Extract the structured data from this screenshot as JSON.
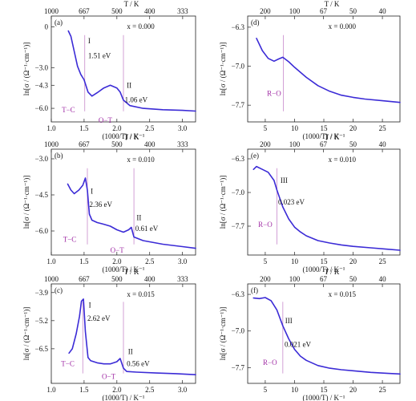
{
  "colors": {
    "curve": "#3b2bd6",
    "phase": "#b03ab5",
    "vline": "#c889cc"
  },
  "chart_data": [
    {
      "type": "line",
      "panel": "(a)",
      "annotation": "x = 0.000",
      "xlabel": "(1000/T) / K⁻¹",
      "ylabel": "ln[σ / (Ω⁻¹·cm⁻¹)]",
      "toplabel": "T / K",
      "xlim": [
        1.0,
        3.2
      ],
      "ylim": [
        -7.0,
        0.8
      ],
      "xticks": [
        1.0,
        1.5,
        2.0,
        2.5,
        3.0
      ],
      "xtick_labels": [
        "1.0",
        "1.5",
        "2.0",
        "2.5",
        "3.0"
      ],
      "yticks": [
        0,
        -3.0,
        -4.3,
        -6.0
      ],
      "ytick_labels": [
        "0",
        "−3.0",
        "−4.3",
        "−6.0"
      ],
      "top_ticks": [
        1000,
        667,
        500,
        400,
        333
      ],
      "top_tick_labels": [
        "1000",
        "667",
        "500",
        "400",
        "333"
      ],
      "series": [
        {
          "x": [
            1.26,
            1.3,
            1.35,
            1.4,
            1.45,
            1.5,
            1.56,
            1.62,
            1.7,
            1.8,
            1.9,
            2.0,
            2.05,
            2.1,
            2.2,
            2.4,
            2.7,
            3.0,
            3.2
          ],
          "y": [
            -0.3,
            -0.7,
            -1.8,
            -2.9,
            -3.5,
            -3.9,
            -4.8,
            -5.1,
            -4.85,
            -4.5,
            -4.3,
            -4.5,
            -4.8,
            -5.4,
            -5.8,
            -6.0,
            -6.1,
            -6.15,
            -6.2
          ]
        }
      ],
      "vlines": [
        1.51,
        2.1
      ],
      "labels": [
        {
          "text": "I",
          "x": 1.56,
          "y": -1.2,
          "cls": "annot"
        },
        {
          "text": "1.51 eV",
          "x": 1.56,
          "y": -2.3,
          "cls": "annot"
        },
        {
          "text": "II",
          "x": 2.15,
          "y": -4.5,
          "cls": "annot"
        },
        {
          "text": "1.06 eV",
          "x": 2.12,
          "y": -5.55,
          "cls": "annot"
        },
        {
          "text": "T−C",
          "x": 1.16,
          "y": -6.3,
          "cls": "phase"
        },
        {
          "text": "O−T",
          "x": 1.72,
          "y": -7.05,
          "cls": "phase"
        }
      ]
    },
    {
      "type": "line",
      "panel": "(d)",
      "annotation": "x = 0.000",
      "xlabel": "(1000/T) / K⁻¹",
      "ylabel": "ln[σ / (Ω⁻¹·cm⁻¹)]",
      "toplabel": "T / K",
      "xlim": [
        2.0,
        28.0
      ],
      "ylim": [
        -8.0,
        -6.1
      ],
      "xticks": [
        5,
        10,
        15,
        20,
        25
      ],
      "xtick_labels": [
        "5",
        "10",
        "15",
        "20",
        "25"
      ],
      "yticks": [
        -6.3,
        -7.0,
        -7.7
      ],
      "ytick_labels": [
        "−6.3",
        "−7.0",
        "−7.7"
      ],
      "top_ticks": [
        200,
        100,
        67,
        50,
        40
      ],
      "top_tick_labels": [
        "200",
        "100",
        "67",
        "50",
        "40"
      ],
      "series": [
        {
          "x": [
            3.5,
            4.5,
            5.5,
            6.5,
            7.3,
            8.0,
            9.0,
            10.0,
            12.0,
            14.0,
            16.0,
            18.0,
            20.0,
            22.0,
            25.0,
            28.0
          ],
          "y": [
            -6.5,
            -6.72,
            -6.86,
            -6.91,
            -6.87,
            -6.84,
            -6.92,
            -7.02,
            -7.2,
            -7.35,
            -7.45,
            -7.52,
            -7.56,
            -7.59,
            -7.62,
            -7.65
          ]
        }
      ],
      "vlines": [
        8.1
      ],
      "labels": [
        {
          "text": "R−O",
          "x": 5.3,
          "y": -7.53,
          "cls": "phase"
        }
      ]
    },
    {
      "type": "line",
      "panel": "(b)",
      "annotation": "x = 0.010",
      "xlabel": "(1000/T) / K⁻¹",
      "ylabel": "ln[σ / (Ω⁻¹·cm⁻¹)]",
      "toplabel": "T / K",
      "xlim": [
        1.0,
        3.2
      ],
      "ylim": [
        -7.0,
        -2.6
      ],
      "xticks": [
        1.0,
        1.5,
        2.0,
        2.5,
        3.0
      ],
      "xtick_labels": [
        "1.0",
        "1.5",
        "2.0",
        "2.5",
        "3.0"
      ],
      "yticks": [
        -3.0,
        -4.5,
        -6.0
      ],
      "ytick_labels": [
        "−3.0",
        "−4.5",
        "−6.0"
      ],
      "top_ticks": [
        1000,
        667,
        500,
        400,
        333
      ],
      "top_tick_labels": [
        "1000",
        "667",
        "500",
        "400",
        "333"
      ],
      "series": [
        {
          "x": [
            1.25,
            1.3,
            1.35,
            1.42,
            1.48,
            1.52,
            1.55,
            1.58,
            1.62,
            1.7,
            1.8,
            1.9,
            2.0,
            2.1,
            2.18,
            2.22,
            2.26,
            2.4,
            2.7,
            3.0,
            3.2
          ],
          "y": [
            -4.05,
            -4.3,
            -4.45,
            -4.3,
            -4.1,
            -3.8,
            -4.3,
            -5.3,
            -5.55,
            -5.65,
            -5.72,
            -5.8,
            -5.95,
            -6.05,
            -5.95,
            -5.85,
            -6.25,
            -6.4,
            -6.55,
            -6.65,
            -6.72
          ]
        }
      ],
      "vlines": [
        1.55,
        2.26
      ],
      "labels": [
        {
          "text": "I",
          "x": 1.6,
          "y": -4.45,
          "cls": "annot"
        },
        {
          "text": "2.36 eV",
          "x": 1.58,
          "y": -5.0,
          "cls": "annot"
        },
        {
          "text": "II",
          "x": 2.3,
          "y": -5.55,
          "cls": "annot"
        },
        {
          "text": "0.61 eV",
          "x": 2.28,
          "y": -6.0,
          "cls": "annot"
        },
        {
          "text": "T−C",
          "x": 1.18,
          "y": -6.45,
          "cls": "phase"
        },
        {
          "text": "O−T",
          "x": 1.9,
          "y": -6.9,
          "cls": "phase"
        }
      ]
    },
    {
      "type": "line",
      "panel": "(e)",
      "annotation": "x = 0.010",
      "xlabel": "(1000/T) / K⁻¹",
      "ylabel": "ln[σ / (Ω⁻¹·cm⁻¹)]",
      "toplabel": "T / K",
      "xlim": [
        2.0,
        28.0
      ],
      "ylim": [
        -8.3,
        -6.1
      ],
      "xticks": [
        5,
        10,
        15,
        20,
        25
      ],
      "xtick_labels": [
        "5",
        "10",
        "15",
        "20",
        "25"
      ],
      "yticks": [
        -6.3,
        -7.0,
        -7.7
      ],
      "ytick_labels": [
        "−6.3",
        "−7.0",
        "−7.7"
      ],
      "top_ticks": [
        200,
        100,
        67,
        50,
        40
      ],
      "top_tick_labels": [
        "200",
        "100",
        "67",
        "50",
        "40"
      ],
      "series": [
        {
          "x": [
            3.0,
            3.5,
            4.5,
            5.5,
            6.5,
            7.0,
            8.0,
            9.0,
            10.0,
            11.0,
            12.0,
            14.0,
            16.0,
            18.0,
            20.0,
            23.0,
            26.0,
            28.0
          ],
          "y": [
            -6.52,
            -6.46,
            -6.52,
            -6.58,
            -6.75,
            -6.95,
            -7.3,
            -7.55,
            -7.72,
            -7.82,
            -7.9,
            -8.0,
            -8.05,
            -8.09,
            -8.12,
            -8.15,
            -8.18,
            -8.2
          ]
        }
      ],
      "vlines": [
        7.0
      ],
      "labels": [
        {
          "text": "III",
          "x": 7.6,
          "y": -6.8,
          "cls": "annot"
        },
        {
          "text": "0.023 eV",
          "x": 7.2,
          "y": -7.25,
          "cls": "annot"
        },
        {
          "text": "R−O",
          "x": 3.8,
          "y": -7.72,
          "cls": "phase"
        }
      ]
    },
    {
      "type": "line",
      "panel": "(c)",
      "annotation": "x = 0.015",
      "xlabel": "(1000/T) / K⁻¹",
      "ylabel": "ln[σ / (Ω⁻¹·cm⁻¹)]",
      "toplabel": "T / K",
      "xlim": [
        1.0,
        3.2
      ],
      "ylim": [
        -8.1,
        -3.5
      ],
      "xticks": [
        1.0,
        1.5,
        2.0,
        2.5,
        3.0
      ],
      "xtick_labels": [
        "1.0",
        "1.5",
        "2.0",
        "2.5",
        "3.0"
      ],
      "yticks": [
        -3.9,
        -5.2,
        -6.5
      ],
      "ytick_labels": [
        "−3.9",
        "−5.2",
        "−6.5"
      ],
      "top_ticks": [
        1000,
        667,
        500,
        400,
        333
      ],
      "top_tick_labels": [
        "1000",
        "667",
        "500",
        "400",
        "333"
      ],
      "series": [
        {
          "x": [
            1.27,
            1.32,
            1.38,
            1.43,
            1.46,
            1.49,
            1.52,
            1.56,
            1.6,
            1.7,
            1.8,
            1.9,
            2.0,
            2.05,
            2.1,
            2.15,
            2.3,
            2.6,
            2.9,
            3.2
          ],
          "y": [
            -6.7,
            -6.5,
            -5.8,
            -5.0,
            -4.3,
            -4.2,
            -5.7,
            -6.9,
            -7.05,
            -7.15,
            -7.2,
            -7.2,
            -7.1,
            -6.95,
            -7.4,
            -7.55,
            -7.58,
            -7.62,
            -7.65,
            -7.7
          ]
        }
      ],
      "vlines": [
        1.48,
        2.1
      ],
      "labels": [
        {
          "text": "I",
          "x": 1.57,
          "y": -4.6,
          "cls": "annot"
        },
        {
          "text": "2.62 eV",
          "x": 1.55,
          "y": -5.2,
          "cls": "annot"
        },
        {
          "text": "II",
          "x": 2.17,
          "y": -6.75,
          "cls": "annot"
        },
        {
          "text": "0.56 eV",
          "x": 2.15,
          "y": -7.3,
          "cls": "annot"
        },
        {
          "text": "T−C",
          "x": 1.15,
          "y": -7.3,
          "cls": "phase"
        },
        {
          "text": "O−T",
          "x": 1.77,
          "y": -7.9,
          "cls": "phase"
        }
      ]
    },
    {
      "type": "line",
      "panel": "(f)",
      "annotation": "x = 0.015",
      "xlabel": "(1000/T) / K⁻¹",
      "ylabel": "ln[σ / (Ω⁻¹·cm⁻¹)]",
      "toplabel": "T / K",
      "xlim": [
        2.0,
        28.0
      ],
      "ylim": [
        -8.0,
        -6.1
      ],
      "xticks": [
        5,
        10,
        15,
        20,
        25
      ],
      "xtick_labels": [
        "5",
        "10",
        "15",
        "20",
        "25"
      ],
      "yticks": [
        -6.3,
        -7.0,
        -7.7
      ],
      "ytick_labels": [
        "−6.3",
        "−7.0",
        "−7.7"
      ],
      "top_ticks": [
        200,
        100,
        67,
        50,
        40
      ],
      "top_tick_labels": [
        "200",
        "100",
        "67",
        "50",
        "40"
      ],
      "series": [
        {
          "x": [
            3.0,
            4.0,
            5.0,
            6.0,
            7.0,
            8.0,
            9.0,
            10.0,
            11.0,
            12.0,
            14.0,
            16.0,
            18.0,
            20.0,
            23.0,
            26.0,
            28.0
          ],
          "y": [
            -6.37,
            -6.38,
            -6.36,
            -6.42,
            -6.6,
            -6.9,
            -7.15,
            -7.35,
            -7.48,
            -7.56,
            -7.66,
            -7.71,
            -7.74,
            -7.76,
            -7.79,
            -7.81,
            -7.82
          ]
        }
      ],
      "vlines": [
        8.0
      ],
      "labels": [
        {
          "text": "III",
          "x": 8.4,
          "y": -6.85,
          "cls": "annot"
        },
        {
          "text": "0.021 eV",
          "x": 8.3,
          "y": -7.3,
          "cls": "annot"
        },
        {
          "text": "R−O",
          "x": 4.6,
          "y": -7.65,
          "cls": "phase"
        }
      ]
    }
  ]
}
